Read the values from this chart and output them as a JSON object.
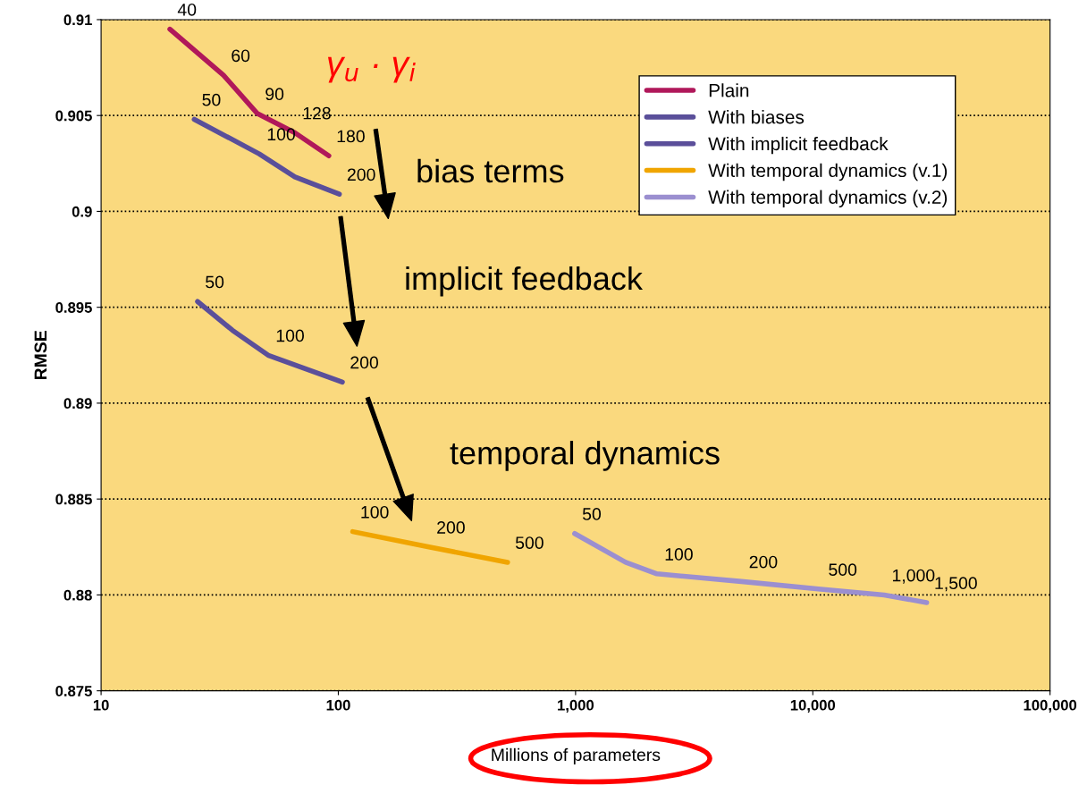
{
  "chart_data": {
    "type": "line",
    "xlabel": "Millions of parameters",
    "ylabel": "RMSE",
    "log": "x",
    "xlim": [
      10,
      100000
    ],
    "xticks": [
      10,
      100,
      {
        "value": 1000,
        "label": "1,000"
      },
      {
        "value": 10000,
        "label": "10,000"
      },
      {
        "value": 100000,
        "label": "100,000"
      }
    ],
    "ylim": [
      0.875,
      0.91
    ],
    "yticks": [
      0.875,
      0.88,
      0.885,
      0.89,
      0.895,
      0.9,
      0.905,
      0.91
    ],
    "grid": "y",
    "legend": "top right",
    "marker": "none",
    "line_style": "solid",
    "series": [
      {
        "name": "Plain",
        "color": "#b0185a",
        "x": [
          19.5,
          32.8,
          45.6,
          65.6,
          91.2
        ],
        "values": [
          0.9095,
          0.9071,
          0.9051,
          0.9041,
          0.9029
        ]
      },
      {
        "name": "With biases",
        "color": "#5a4f9a",
        "x": [
          24.7,
          46.4,
          65.6,
          101
        ],
        "values": [
          0.9048,
          0.903,
          0.9018,
          0.9009
        ]
      },
      {
        "name": "With implicit feedback",
        "color": "#5b4f9a",
        "x": [
          25.5,
          35.8,
          50.6,
          104
        ],
        "values": [
          0.8953,
          0.8938,
          0.8925,
          0.8911
        ]
      },
      {
        "name": "With temporal dynamics (v.1)",
        "color": "#f0a500",
        "x": [
          115,
          241,
          517
        ],
        "values": [
          0.8833,
          0.8825,
          0.8817
        ]
      },
      {
        "name": "With temporal dynamics (v.2)",
        "color": "#9b8fd0",
        "x": [
          991,
          1625,
          2202,
          5000,
          10800,
          20000,
          30200
        ],
        "values": [
          0.8832,
          0.8817,
          0.8811,
          0.8807,
          0.8803,
          0.88,
          0.8796
        ]
      }
    ],
    "annotations": [
      {
        "text": "40",
        "x": 19.5,
        "y": 0.9095
      },
      {
        "text": "60",
        "x": 32.8,
        "y": 0.9071
      },
      {
        "text": "90",
        "x": 45.6,
        "y": 0.9051
      },
      {
        "text": "128",
        "x": 65.6,
        "y": 0.9041
      },
      {
        "text": "180",
        "x": 91.2,
        "y": 0.9029
      },
      {
        "text": "50",
        "x": 24.7,
        "y": 0.9048
      },
      {
        "text": "100",
        "x": 46.4,
        "y": 0.903
      },
      {
        "text": "200",
        "x": 101,
        "y": 0.9009
      },
      {
        "text": "50",
        "x": 25.5,
        "y": 0.8953
      },
      {
        "text": "100",
        "x": 50.6,
        "y": 0.8925
      },
      {
        "text": "200",
        "x": 104,
        "y": 0.8911
      },
      {
        "text": "100",
        "x": 115,
        "y": 0.8833
      },
      {
        "text": "200",
        "x": 241,
        "y": 0.8825
      },
      {
        "text": "500",
        "x": 517,
        "y": 0.8817
      },
      {
        "text": "50",
        "x": 991,
        "y": 0.8832
      },
      {
        "text": "100",
        "x": 2202,
        "y": 0.8811
      },
      {
        "text": "200",
        "x": 5000,
        "y": 0.8807
      },
      {
        "text": "500",
        "x": 10800,
        "y": 0.8803
      },
      {
        "text": "1,000",
        "x": 20000,
        "y": 0.88
      },
      {
        "text": "1,500",
        "x": 30200,
        "y": 0.8796
      },
      "bias terms",
      "implicit feedback",
      "temporal dynamics",
      "γ$_{u}$ · γ$_{i}$"
    ]
  }
}
